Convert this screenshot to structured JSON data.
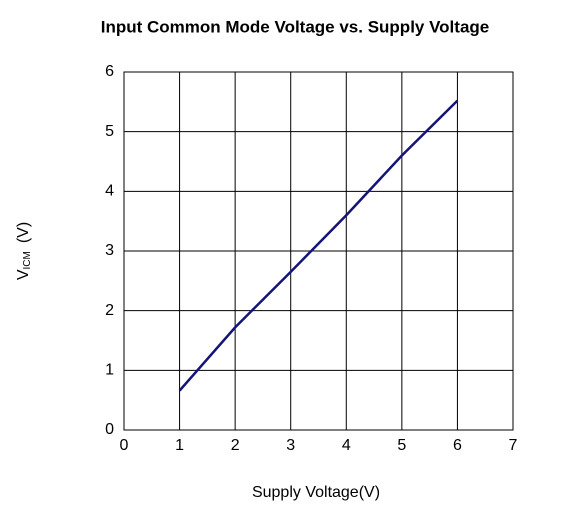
{
  "chart_data": {
    "type": "line",
    "title": "Input Common Mode Voltage vs. Supply Voltage",
    "x_label": "Supply Voltage(V)",
    "y_label": {
      "main": "V",
      "sub": "ICM",
      "unit": "(V)"
    },
    "series": [
      {
        "name": "VICM",
        "color": "#141478",
        "x": [
          1,
          2,
          3,
          4,
          5,
          6
        ],
        "values": [
          0.66,
          1.72,
          2.65,
          3.6,
          4.6,
          5.52
        ]
      }
    ],
    "xlim": [
      0,
      7
    ],
    "xticks": [
      0,
      1,
      2,
      3,
      4,
      5,
      6,
      7
    ],
    "ylim": [
      0,
      6
    ],
    "yticks": [
      0,
      1,
      2,
      3,
      4,
      5,
      6
    ],
    "grid": true
  }
}
